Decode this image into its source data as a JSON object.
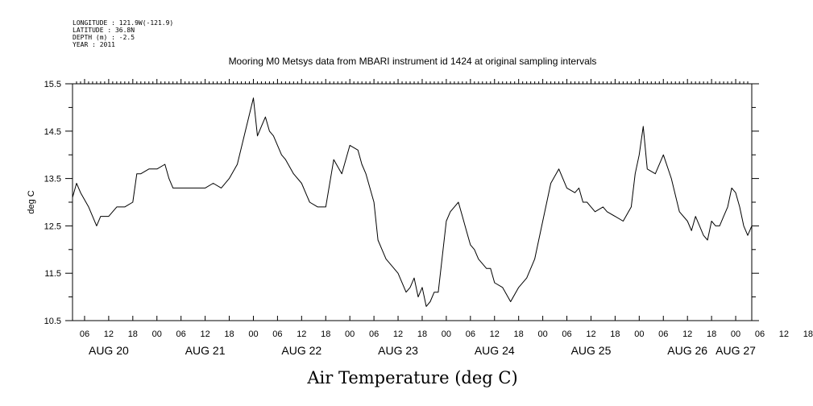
{
  "header": {
    "longitude": "LONGITUDE : 121.9W(-121.9)",
    "latitude": "LATITUDE : 36.8N",
    "depth": "DEPTH (m) : -2.5",
    "year": "YEAR : 2011"
  },
  "chart_data": {
    "type": "line",
    "title": "Mooring M0 Metsys data from MBARI instrument id 1424 at original sampling intervals",
    "xlabel": "Air Temperature (deg C)",
    "ylabel": "deg C",
    "ylim": [
      10.5,
      15.5
    ],
    "yticks": [
      "10.5",
      "11.5",
      "12.5",
      "13.5",
      "14.5",
      "15.5"
    ],
    "x_unit": "hours since Aug 20 00:00, 2011",
    "xlim": [
      3,
      172
    ],
    "hour_ticks": [
      "06",
      "12",
      "18",
      "00",
      "06",
      "12",
      "18",
      "00",
      "06",
      "12",
      "18",
      "00",
      "06",
      "12",
      "18",
      "00",
      "06",
      "12",
      "18",
      "00",
      "06",
      "12",
      "18",
      "00",
      "06",
      "12",
      "18",
      "00",
      "06",
      "12",
      "18",
      "00"
    ],
    "day_labels": [
      "AUG 20",
      "AUG 21",
      "AUG 22",
      "AUG 23",
      "AUG 24",
      "AUG 25",
      "AUG 26",
      "AUG 27"
    ],
    "grid": false,
    "series": [
      {
        "name": "",
        "x": [
          3,
          4,
          5,
          7,
          9,
          10,
          12,
          14,
          16,
          18,
          19,
          20,
          22,
          24,
          26,
          27,
          28,
          30,
          33,
          36,
          38,
          40,
          42,
          44,
          46,
          48,
          48.5,
          49,
          50,
          51,
          52,
          53,
          54,
          55,
          56,
          58,
          60,
          62,
          64,
          66,
          68,
          70,
          72,
          74,
          75,
          76,
          78,
          79,
          80,
          81,
          82,
          84,
          86,
          87,
          88,
          89,
          90,
          91,
          92,
          93,
          94,
          96,
          97,
          98,
          99,
          100,
          101,
          102,
          103,
          104,
          106,
          107,
          108,
          110,
          112,
          114,
          116,
          118,
          120,
          122,
          124,
          126,
          128,
          129,
          130,
          131,
          132,
          133,
          135,
          136,
          138,
          140,
          142,
          143,
          144,
          145,
          146,
          148,
          150,
          152,
          154,
          156,
          157,
          158,
          159,
          160,
          161,
          162,
          163,
          164,
          165,
          166,
          167,
          168,
          169,
          170,
          171,
          172
        ],
        "y": [
          13.1,
          13.4,
          13.2,
          12.9,
          12.5,
          12.7,
          12.7,
          12.9,
          12.9,
          13.0,
          13.6,
          13.6,
          13.7,
          13.7,
          13.8,
          13.5,
          13.3,
          13.3,
          13.3,
          13.3,
          13.4,
          13.3,
          13.5,
          13.8,
          14.5,
          15.2,
          14.8,
          14.4,
          14.6,
          14.8,
          14.5,
          14.4,
          14.2,
          14.0,
          13.9,
          13.6,
          13.4,
          13.0,
          12.9,
          12.9,
          13.9,
          13.6,
          14.2,
          14.1,
          13.8,
          13.6,
          13.0,
          12.2,
          12.0,
          11.8,
          11.7,
          11.5,
          11.1,
          11.2,
          11.4,
          11.0,
          11.2,
          10.8,
          10.9,
          11.1,
          11.1,
          12.6,
          12.8,
          12.9,
          13.0,
          12.7,
          12.4,
          12.1,
          12.0,
          11.8,
          11.6,
          11.6,
          11.3,
          11.2,
          10.9,
          11.2,
          11.4,
          11.8,
          12.6,
          13.4,
          13.7,
          13.3,
          13.2,
          13.3,
          13.0,
          13.0,
          12.9,
          12.8,
          12.9,
          12.8,
          12.7,
          12.6,
          12.9,
          13.6,
          14.0,
          14.6,
          13.7,
          13.6,
          14.0,
          13.5,
          12.8,
          12.6,
          12.4,
          12.7,
          12.5,
          12.3,
          12.2,
          12.6,
          12.5,
          12.5,
          12.7,
          12.9,
          13.3,
          13.2,
          12.9,
          12.5,
          12.3,
          12.5
        ]
      }
    ]
  }
}
